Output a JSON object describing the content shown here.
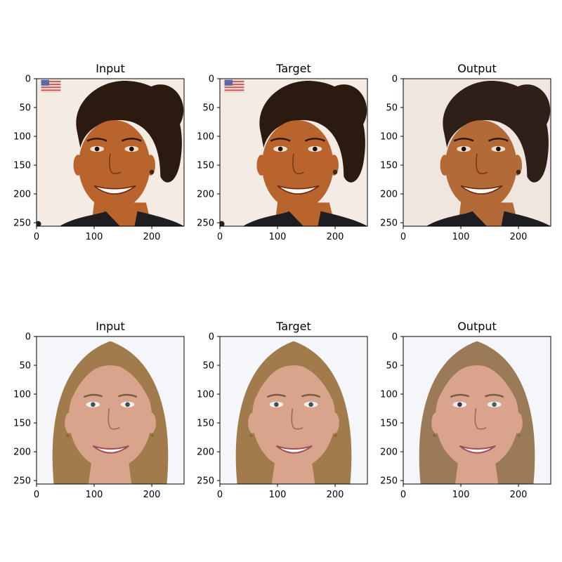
{
  "figure": {
    "panels": [
      {
        "title": "Input",
        "person": "subject-1",
        "variant": "input"
      },
      {
        "title": "Target",
        "person": "subject-1",
        "variant": "target"
      },
      {
        "title": "Output",
        "person": "subject-1",
        "variant": "output"
      },
      {
        "title": "Input",
        "person": "subject-2",
        "variant": "input"
      },
      {
        "title": "Target",
        "person": "subject-2",
        "variant": "target"
      },
      {
        "title": "Output",
        "person": "subject-2",
        "variant": "output"
      }
    ],
    "axis": {
      "xlim": [
        0,
        256
      ],
      "ylim": [
        256,
        0
      ],
      "xticks": [
        0,
        100,
        200
      ],
      "yticks": [
        0,
        50,
        100,
        150,
        200,
        250
      ]
    },
    "colors": {
      "subject1_skin": "#b8642c",
      "subject1_hair": "#2a1a10",
      "subject1_background": "#f3ebe4",
      "subject1_clothing": "#1e1e22",
      "subject2_skin": "#d9a48c",
      "subject2_hair": "#a27b4c",
      "subject2_background": "#f4f6fa"
    }
  }
}
